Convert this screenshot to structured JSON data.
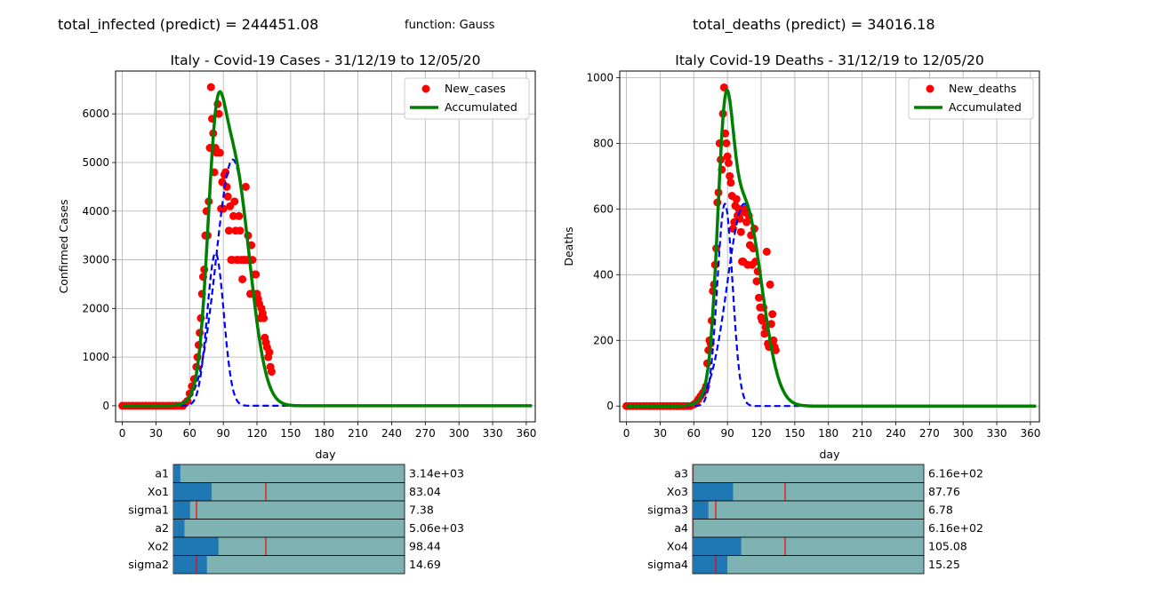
{
  "header": {
    "infected_predict": "total_infected (predict) = 244451.08",
    "function_label": "function: Gauss",
    "deaths_predict": "total_deaths (predict) = 34016.18"
  },
  "colors": {
    "points": "#ff0000",
    "accumulated": "#008000",
    "dashed": "#0000ff",
    "slider_track": "#7fb3b3",
    "slider_fill": "#1f77b4",
    "slider_marker": "#ff0000",
    "grid": "#b0b0b0"
  },
  "chart_data": [
    {
      "type": "scatter",
      "title": "Italy - Covid-19 Cases - 31/12/19 to 12/05/20",
      "xlabel": "day",
      "ylabel": "Confirmed Cases",
      "xlim": [
        -6,
        368
      ],
      "ylim": [
        -330,
        6880
      ],
      "xticks": [
        0,
        30,
        60,
        90,
        120,
        150,
        180,
        210,
        240,
        270,
        300,
        330,
        360
      ],
      "yticks": [
        0,
        1000,
        2000,
        3000,
        4000,
        5000,
        6000
      ],
      "grid": true,
      "legend_position": "top-right",
      "legend": [
        "New_cases",
        "Accumulated"
      ],
      "series": [
        {
          "name": "New_cases",
          "style": "points",
          "x": [
            0,
            3,
            6,
            9,
            12,
            15,
            18,
            21,
            24,
            27,
            30,
            33,
            36,
            39,
            42,
            45,
            48,
            51,
            54,
            56,
            58,
            60,
            62,
            64,
            66,
            67,
            68,
            69,
            70,
            71,
            72,
            73,
            74,
            75,
            76,
            77,
            78,
            79,
            80,
            81,
            82,
            83,
            84,
            85,
            86,
            87,
            88,
            89,
            90,
            91,
            92,
            93,
            94,
            95,
            96,
            97,
            98,
            99,
            100,
            101,
            102,
            103,
            104,
            105,
            106,
            107,
            108,
            109,
            110,
            111,
            112,
            113,
            114,
            115,
            116,
            117,
            118,
            119,
            120,
            121,
            122,
            123,
            124,
            125,
            126,
            127,
            128,
            129,
            130,
            131,
            132,
            133
          ],
          "y": [
            0,
            0,
            0,
            0,
            0,
            0,
            0,
            0,
            0,
            0,
            0,
            0,
            0,
            0,
            0,
            0,
            0,
            0,
            0,
            50,
            100,
            250,
            400,
            550,
            800,
            1000,
            1250,
            1500,
            1800,
            2300,
            2650,
            2800,
            3500,
            4000,
            3500,
            4200,
            5300,
            6550,
            5900,
            5600,
            4800,
            5300,
            5200,
            6200,
            6000,
            5200,
            4050,
            4600,
            4050,
            4750,
            4800,
            4500,
            4300,
            3600,
            4100,
            3000,
            3000,
            3900,
            4200,
            3600,
            3000,
            3000,
            3900,
            3600,
            3000,
            2600,
            3000,
            3000,
            4500,
            3000,
            3500,
            3000,
            2300,
            3300,
            3000,
            2300,
            2700,
            2700,
            2300,
            2200,
            2100,
            1800,
            2000,
            1900,
            1800,
            1400,
            1300,
            1200,
            1000,
            1100,
            800,
            700
          ]
        },
        {
          "name": "Accumulated",
          "style": "line",
          "gauss": [
            [
              3140,
              83.04,
              7.38
            ],
            [
              5060,
              98.44,
              14.69
            ]
          ]
        },
        {
          "name": "",
          "style": "dashed",
          "gauss": [
            [
              3140,
              83.04,
              7.38
            ],
            [
              5060,
              98.44,
              14.69
            ]
          ]
        }
      ]
    },
    {
      "type": "scatter",
      "title": "Italy Covid-19 Deaths - 31/12/19 to 12/05/20",
      "xlabel": "day",
      "ylabel": "Deaths",
      "xlim": [
        -6,
        368
      ],
      "ylim": [
        -48,
        1020
      ],
      "xticks": [
        0,
        30,
        60,
        90,
        120,
        150,
        180,
        210,
        240,
        270,
        300,
        330,
        360
      ],
      "yticks": [
        0,
        200,
        400,
        600,
        800,
        1000
      ],
      "grid": true,
      "legend_position": "top-right",
      "legend": [
        "New_deaths",
        "Accumulated"
      ],
      "series": [
        {
          "name": "New_deaths",
          "style": "points",
          "x": [
            0,
            3,
            6,
            9,
            12,
            15,
            18,
            21,
            24,
            27,
            30,
            33,
            36,
            39,
            42,
            45,
            48,
            51,
            54,
            57,
            60,
            62,
            64,
            66,
            68,
            70,
            71,
            72,
            73,
            74,
            75,
            76,
            77,
            78,
            79,
            80,
            81,
            82,
            83,
            84,
            85,
            86,
            87,
            88,
            89,
            90,
            91,
            92,
            93,
            94,
            95,
            96,
            97,
            98,
            99,
            100,
            101,
            102,
            103,
            104,
            105,
            106,
            107,
            108,
            109,
            110,
            111,
            112,
            113,
            114,
            115,
            116,
            117,
            118,
            119,
            120,
            121,
            122,
            123,
            124,
            125,
            126,
            127,
            128,
            129,
            130,
            131,
            132,
            133
          ],
          "y": [
            0,
            0,
            0,
            0,
            0,
            0,
            0,
            0,
            0,
            0,
            0,
            0,
            0,
            0,
            0,
            0,
            0,
            0,
            0,
            0,
            5,
            10,
            20,
            30,
            40,
            50,
            60,
            130,
            170,
            200,
            190,
            260,
            350,
            370,
            430,
            480,
            620,
            650,
            800,
            750,
            720,
            890,
            970,
            830,
            800,
            760,
            740,
            700,
            680,
            640,
            540,
            560,
            610,
            630,
            580,
            600,
            570,
            530,
            440,
            440,
            590,
            600,
            560,
            430,
            580,
            490,
            520,
            430,
            480,
            540,
            440,
            380,
            410,
            330,
            300,
            270,
            260,
            300,
            220,
            240,
            470,
            190,
            180,
            370,
            250,
            280,
            200,
            180,
            170
          ]
        },
        {
          "name": "Accumulated",
          "style": "line",
          "gauss": [
            [
              616,
              87.76,
              6.78
            ],
            [
              616,
              105.08,
              15.25
            ]
          ]
        },
        {
          "name": "",
          "style": "dashed",
          "gauss": [
            [
              616,
              87.76,
              6.78
            ],
            [
              616,
              105.08,
              15.25
            ]
          ]
        }
      ]
    }
  ],
  "sliders": [
    {
      "side": "left",
      "items": [
        {
          "label": "a1",
          "value_text": "3.14e+03",
          "fill": 0.03,
          "marker": null
        },
        {
          "label": "Xo1",
          "value_text": "83.04",
          "fill": 0.165,
          "marker": 0.4
        },
        {
          "label": "sigma1",
          "value_text": "7.38",
          "fill": 0.072,
          "marker": 0.1
        },
        {
          "label": "a2",
          "value_text": "5.06e+03",
          "fill": 0.048,
          "marker": null
        },
        {
          "label": "Xo2",
          "value_text": "98.44",
          "fill": 0.195,
          "marker": 0.4
        },
        {
          "label": "sigma2",
          "value_text": "14.69",
          "fill": 0.145,
          "marker": 0.1
        }
      ]
    },
    {
      "side": "right",
      "items": [
        {
          "label": "a3",
          "value_text": "6.16e+02",
          "fill": 0.002,
          "marker": 0.002
        },
        {
          "label": "Xo3",
          "value_text": "87.76",
          "fill": 0.175,
          "marker": 0.4
        },
        {
          "label": "sigma3",
          "value_text": "6.78",
          "fill": 0.068,
          "marker": 0.1
        },
        {
          "label": "a4",
          "value_text": "6.16e+02",
          "fill": 0.002,
          "marker": 0.002
        },
        {
          "label": "Xo4",
          "value_text": "105.08",
          "fill": 0.21,
          "marker": 0.4
        },
        {
          "label": "sigma4",
          "value_text": "15.25",
          "fill": 0.15,
          "marker": 0.1
        }
      ]
    }
  ]
}
